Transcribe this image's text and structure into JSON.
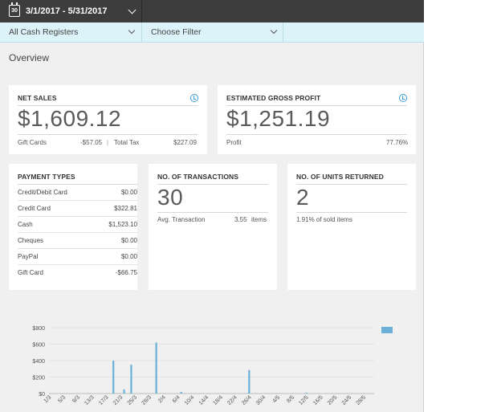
{
  "topbar": {
    "date_range": "3/1/2017 - 5/31/2017",
    "calendar_day": "30"
  },
  "filters": {
    "register": "All Cash Registers",
    "filter": "Choose Filter"
  },
  "page": {
    "title": "Overview"
  },
  "net_sales": {
    "title": "NET SALES",
    "value": "$1,609.12",
    "gift_cards_label": "Gift Cards",
    "gift_cards_value": "-$57.05",
    "total_tax_label": "Total Tax",
    "total_tax_value": "$227.09",
    "separator": "|"
  },
  "gross_profit": {
    "title": "ESTIMATED GROSS PROFIT",
    "value": "$1,251.19",
    "profit_label": "Profit",
    "profit_value": "77.76%"
  },
  "payment_types": {
    "title": "PAYMENT TYPES",
    "rows": [
      {
        "name": "Credit/Debit Card",
        "value": "$0.00"
      },
      {
        "name": "Credit Card",
        "value": "$322.81"
      },
      {
        "name": "Cash",
        "value": "$1,523.10"
      },
      {
        "name": "Cheques",
        "value": "$0.00"
      },
      {
        "name": "PayPal",
        "value": "$0.00"
      },
      {
        "name": "Gift Card",
        "value": "-$66.75"
      }
    ]
  },
  "transactions": {
    "title": "NO. OF TRANSACTIONS",
    "value": "30",
    "avg_label": "Avg. Transaction",
    "avg_value": "3.55",
    "avg_unit": "items"
  },
  "units_returned": {
    "title": "NO. OF UNITS RETURNED",
    "value": "2",
    "note": "1.91% of sold items"
  },
  "colors": {
    "accent": "#3d9bd6",
    "bar": "#6ab0d8",
    "topbar": "#3d3d3d",
    "filterbar": "#dcf3fa"
  },
  "chart_data": {
    "type": "bar",
    "categories": [
      "1/3",
      "5/3",
      "9/3",
      "13/3",
      "17/3",
      "21/3",
      "25/3",
      "29/3",
      "2/4",
      "6/4",
      "10/4",
      "14/4",
      "18/4",
      "22/4",
      "26/4",
      "30/4",
      "4/5",
      "8/5",
      "12/5",
      "16/5",
      "20/5",
      "24/5",
      "28/5"
    ],
    "x_range": [
      1,
      92
    ],
    "points": [
      {
        "day": 19,
        "value": 400
      },
      {
        "day": 22,
        "value": 50
      },
      {
        "day": 24,
        "value": 350
      },
      {
        "day": 31,
        "value": 620
      },
      {
        "day": 38,
        "value": 20
      },
      {
        "day": 57,
        "value": 285
      },
      {
        "day": 73,
        "value": 10
      }
    ],
    "yticks": [
      "$0",
      "$200",
      "$400",
      "$600",
      "$800"
    ],
    "ylim": [
      0,
      800
    ],
    "grid": true,
    "legend": "top-right"
  }
}
